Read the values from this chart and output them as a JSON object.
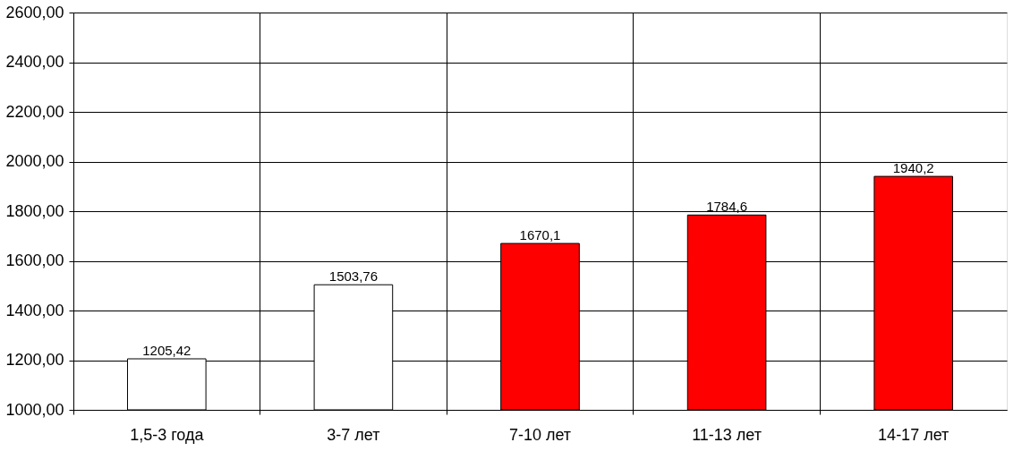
{
  "chart_data": {
    "type": "bar",
    "categories": [
      "1,5-3 года",
      "3-7 лет",
      "7-10 лет",
      "11-13 лет",
      "14-17 лет"
    ],
    "values": [
      1205.42,
      1503.76,
      1670.1,
      1784.6,
      1940.2
    ],
    "colors": [
      "#ffffff",
      "#ffffff",
      "#ff0000",
      "#ff0000",
      "#ff0000"
    ],
    "value_labels": [
      "1205,42",
      "1503,76",
      "1670,1",
      "1784,6",
      "1940,2"
    ],
    "ylim": [
      1000,
      2600
    ],
    "yticks": [
      {
        "value": 1000,
        "label": "1000,00"
      },
      {
        "value": 1200,
        "label": "1200,00"
      },
      {
        "value": 1400,
        "label": "1400,00"
      },
      {
        "value": 1600,
        "label": "1600,00"
      },
      {
        "value": 1800,
        "label": "1800,00"
      },
      {
        "value": 2000,
        "label": "2000,00"
      },
      {
        "value": 2200,
        "label": "2200,00"
      },
      {
        "value": 2400,
        "label": "2400,00"
      },
      {
        "value": 2600,
        "label": "2600,00"
      }
    ],
    "grid": true,
    "legend": false
  }
}
